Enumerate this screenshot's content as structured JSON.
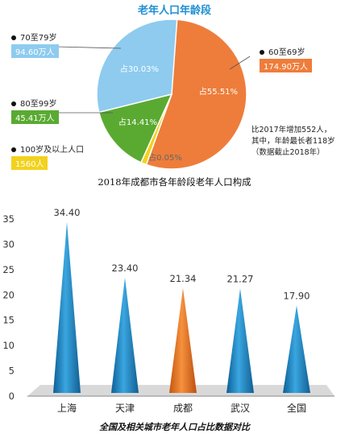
{
  "pie_chart": {
    "title": "老年人口年龄段",
    "caption": "2018年成都市各年龄段老年人口构成",
    "note_lines": [
      "比2017年增加552人，",
      "其中，年龄最长者118岁",
      "（数据截止2018年）"
    ],
    "colors": {
      "60-69": "#ee7d3b",
      "70-79": "#8ecbef",
      "80-99": "#5aaa32",
      "100+": "#f2d21c"
    }
  },
  "bar_chart": {
    "caption": "全国及相关城市老年人口占比数据对比",
    "colors": {
      "blue": "#1b86c4",
      "orange": "#ee7b26"
    }
  },
  "chart_data": [
    {
      "type": "pie",
      "title": "老年人口年龄段",
      "categories": [
        "60至69岁",
        "70至79岁",
        "80至99岁",
        "100岁及以上人口"
      ],
      "value_labels": [
        "174.90万人",
        "94.60万人",
        "45.41万人",
        "1560人"
      ],
      "values": [
        55.51,
        30.03,
        14.41,
        0.05
      ],
      "percent_labels": [
        "占55.51%",
        "占30.03%",
        "占14.41%",
        "占0.05%"
      ]
    },
    {
      "type": "bar",
      "categories": [
        "上海",
        "天津",
        "成都",
        "武汉",
        "全国"
      ],
      "values": [
        34.4,
        23.4,
        21.34,
        21.27,
        17.9
      ],
      "value_labels": [
        "34.40",
        "23.40",
        "21.34",
        "21.27",
        "17.90"
      ],
      "ylim": [
        0,
        35
      ],
      "yticks": [
        0,
        5,
        10,
        15,
        20,
        25,
        30,
        35
      ],
      "highlight": "成都",
      "grid": false
    }
  ]
}
